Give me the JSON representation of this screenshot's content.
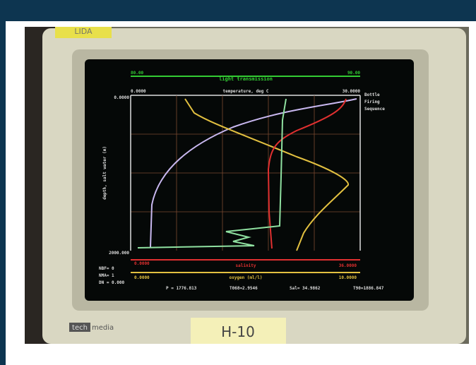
{
  "tape_label": "LIDA",
  "screen": {
    "top_axis": {
      "title": "light transmission",
      "min": "80.00",
      "max": "90.00"
    },
    "temperature_axis": {
      "title": "temperature, deg C",
      "min": "0.0000",
      "max": "30.0000"
    },
    "legend": [
      "Bottle",
      "Firing",
      "Sequence"
    ],
    "depth_axis": {
      "title": "depth, salt water (m)",
      "top": "0.0000",
      "bottom": "2000.000"
    },
    "salinity_axis": {
      "title": "salinity",
      "min": "0.0000",
      "max": "36.0000"
    },
    "oxygen_axis": {
      "title": "oxygen (ml/l)",
      "min": "0.0000",
      "max": "10.0000"
    },
    "status": [
      "NBF= 0",
      "NMA= 1",
      "DN = 0.000",
      "P = 1776.813",
      "T068=2.9546",
      "Sal= 34.9862",
      "T90=1886.847"
    ]
  },
  "brand": {
    "box": "tech",
    "rest": "media"
  },
  "sticky_note": "H-10"
}
